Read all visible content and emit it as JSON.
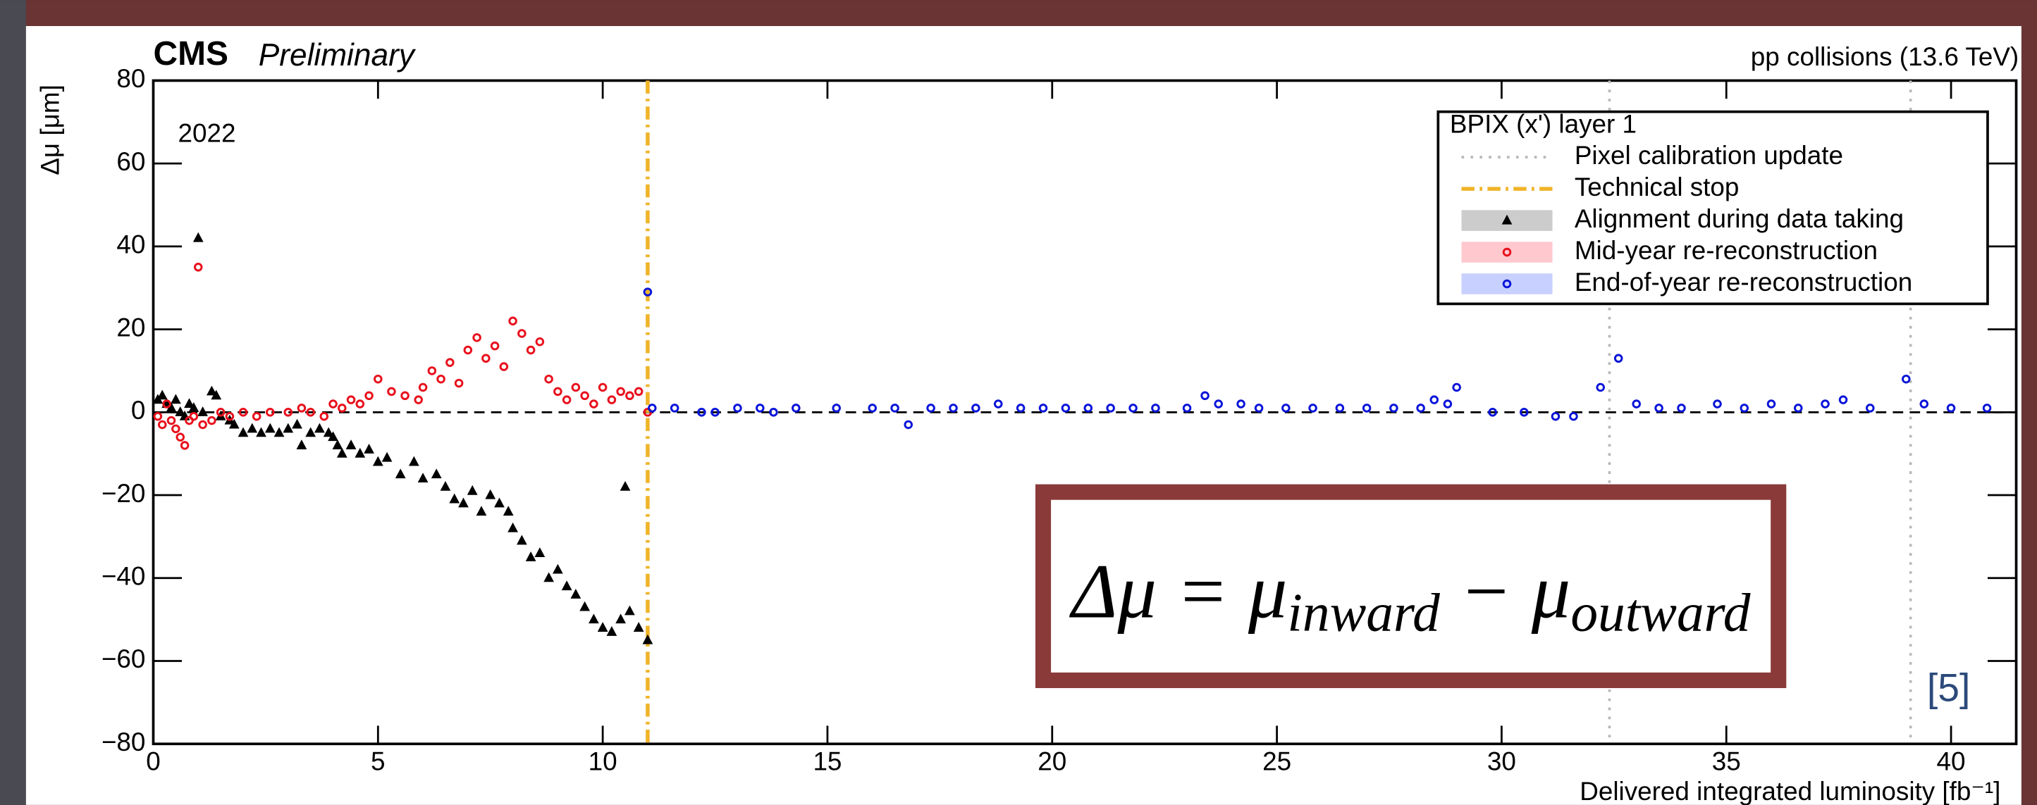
{
  "chart_data": {
    "type": "scatter",
    "title": "CMS",
    "subtitle": "Preliminary",
    "right_label": "pp collisions (13.6 TeV)",
    "year_label": "2022",
    "xlabel": "Delivered integrated luminosity  [fb⁻¹]",
    "ylabel": "Δμ [μm]",
    "xlim": [
      0,
      41.45
    ],
    "ylim": [
      -80,
      80
    ],
    "xticks": [
      0,
      5,
      10,
      15,
      20,
      25,
      30,
      35,
      40
    ],
    "yticks": [
      {
        "value": -80,
        "label": "−80"
      },
      {
        "value": -60,
        "label": "−60"
      },
      {
        "value": -40,
        "label": "−40"
      },
      {
        "value": -20,
        "label": "−20"
      },
      0,
      20,
      40,
      60,
      80
    ],
    "hline": 0,
    "legend_title": "BPIX (x') layer 1",
    "vlines": [
      {
        "name": "Pixel calibration update",
        "color": "#b8b8b8",
        "style": "dotted",
        "x": [
          32.4,
          39.1
        ]
      },
      {
        "name": "Technical stop",
        "color": "#f0b429",
        "style": "dashdot",
        "x": [
          11.0
        ]
      }
    ],
    "series": [
      {
        "name": "Alignment during data taking",
        "color": "#000000",
        "band_color": "#cccccc",
        "marker": "triangle",
        "x": [
          0.1,
          0.2,
          0.3,
          0.4,
          0.5,
          0.6,
          0.7,
          0.8,
          0.9,
          1.0,
          1.1,
          1.3,
          1.4,
          1.5,
          1.7,
          1.8,
          2.0,
          2.2,
          2.4,
          2.6,
          2.8,
          3.0,
          3.2,
          3.3,
          3.5,
          3.7,
          3.9,
          4.0,
          4.1,
          4.2,
          4.4,
          4.6,
          4.8,
          5.0,
          5.2,
          5.5,
          5.8,
          6.0,
          6.3,
          6.5,
          6.7,
          6.9,
          7.1,
          7.3,
          7.5,
          7.7,
          7.9,
          8.0,
          8.2,
          8.4,
          8.6,
          8.8,
          9.0,
          9.2,
          9.4,
          9.6,
          9.8,
          10.0,
          10.2,
          10.4,
          10.5,
          10.6,
          10.8,
          11.0
        ],
        "values": [
          3,
          4,
          2,
          1,
          3,
          0,
          -1,
          2,
          1,
          42,
          0,
          5,
          4,
          -1,
          -2,
          -3,
          -5,
          -4,
          -5,
          -4,
          -5,
          -4,
          -3,
          -8,
          -5,
          -4,
          -5,
          -6,
          -8,
          -10,
          -8,
          -10,
          -9,
          -12,
          -11,
          -15,
          -12,
          -16,
          -15,
          -18,
          -21,
          -22,
          -19,
          -24,
          -20,
          -22,
          -24,
          -28,
          -31,
          -35,
          -34,
          -40,
          -38,
          -42,
          -44,
          -47,
          -50,
          -52,
          -53,
          -50,
          -18,
          -48,
          -52,
          -55
        ]
      },
      {
        "name": "Mid-year re-reconstruction",
        "color": "#e8101c",
        "band_color": "#ffc8cf",
        "marker": "circle",
        "x": [
          0.1,
          0.2,
          0.3,
          0.4,
          0.5,
          0.6,
          0.7,
          0.8,
          0.9,
          1.0,
          1.1,
          1.3,
          1.5,
          1.7,
          2.0,
          2.3,
          2.6,
          3.0,
          3.3,
          3.5,
          3.8,
          4.0,
          4.2,
          4.4,
          4.6,
          4.8,
          5.0,
          5.3,
          5.6,
          5.9,
          6.0,
          6.2,
          6.4,
          6.6,
          6.8,
          7.0,
          7.2,
          7.4,
          7.6,
          7.8,
          8.0,
          8.2,
          8.4,
          8.6,
          8.8,
          9.0,
          9.2,
          9.4,
          9.6,
          9.8,
          10.0,
          10.2,
          10.4,
          10.6,
          10.8,
          11.0
        ],
        "values": [
          -1,
          -3,
          2,
          -2,
          -4,
          -6,
          -8,
          -2,
          -1,
          35,
          -3,
          -2,
          0,
          -1,
          0,
          -1,
          0,
          0,
          1,
          0,
          -1,
          2,
          1,
          3,
          2,
          4,
          8,
          5,
          4,
          3,
          6,
          10,
          8,
          12,
          7,
          15,
          18,
          13,
          16,
          11,
          22,
          19,
          15,
          17,
          8,
          5,
          3,
          6,
          4,
          2,
          6,
          3,
          5,
          4,
          5,
          0
        ]
      },
      {
        "name": "End-of-year re-reconstruction",
        "color": "#0a14d8",
        "band_color": "#c8d0ff",
        "marker": "circle",
        "x": [
          11.0,
          11.1,
          11.6,
          12.2,
          12.5,
          13.0,
          13.5,
          13.8,
          14.3,
          15.2,
          16.0,
          16.5,
          16.8,
          17.3,
          17.8,
          18.3,
          18.8,
          19.3,
          19.8,
          20.3,
          20.8,
          21.3,
          21.8,
          22.3,
          23.0,
          23.4,
          23.7,
          24.2,
          24.6,
          25.2,
          25.8,
          26.4,
          27.0,
          27.6,
          28.2,
          28.5,
          28.8,
          29.0,
          29.8,
          30.5,
          31.2,
          31.6,
          32.2,
          32.6,
          33.0,
          33.5,
          34.0,
          34.8,
          35.4,
          36.0,
          36.6,
          37.2,
          37.6,
          38.2,
          39.0,
          39.4,
          40.0,
          40.8
        ],
        "values": [
          29,
          1,
          1,
          0,
          0,
          1,
          1,
          0,
          1,
          1,
          1,
          1,
          -3,
          1,
          1,
          1,
          2,
          1,
          1,
          1,
          1,
          1,
          1,
          1,
          1,
          4,
          2,
          2,
          1,
          1,
          1,
          1,
          1,
          1,
          1,
          3,
          2,
          6,
          0,
          0,
          -1,
          -1,
          6,
          13,
          2,
          1,
          1,
          2,
          1,
          2,
          1,
          2,
          3,
          1,
          8,
          2,
          1,
          1
        ]
      }
    ]
  },
  "overlay": {
    "formula": [
      "Δμ = μ",
      "inward",
      " − μ",
      "outward"
    ],
    "citation": "[5]"
  }
}
